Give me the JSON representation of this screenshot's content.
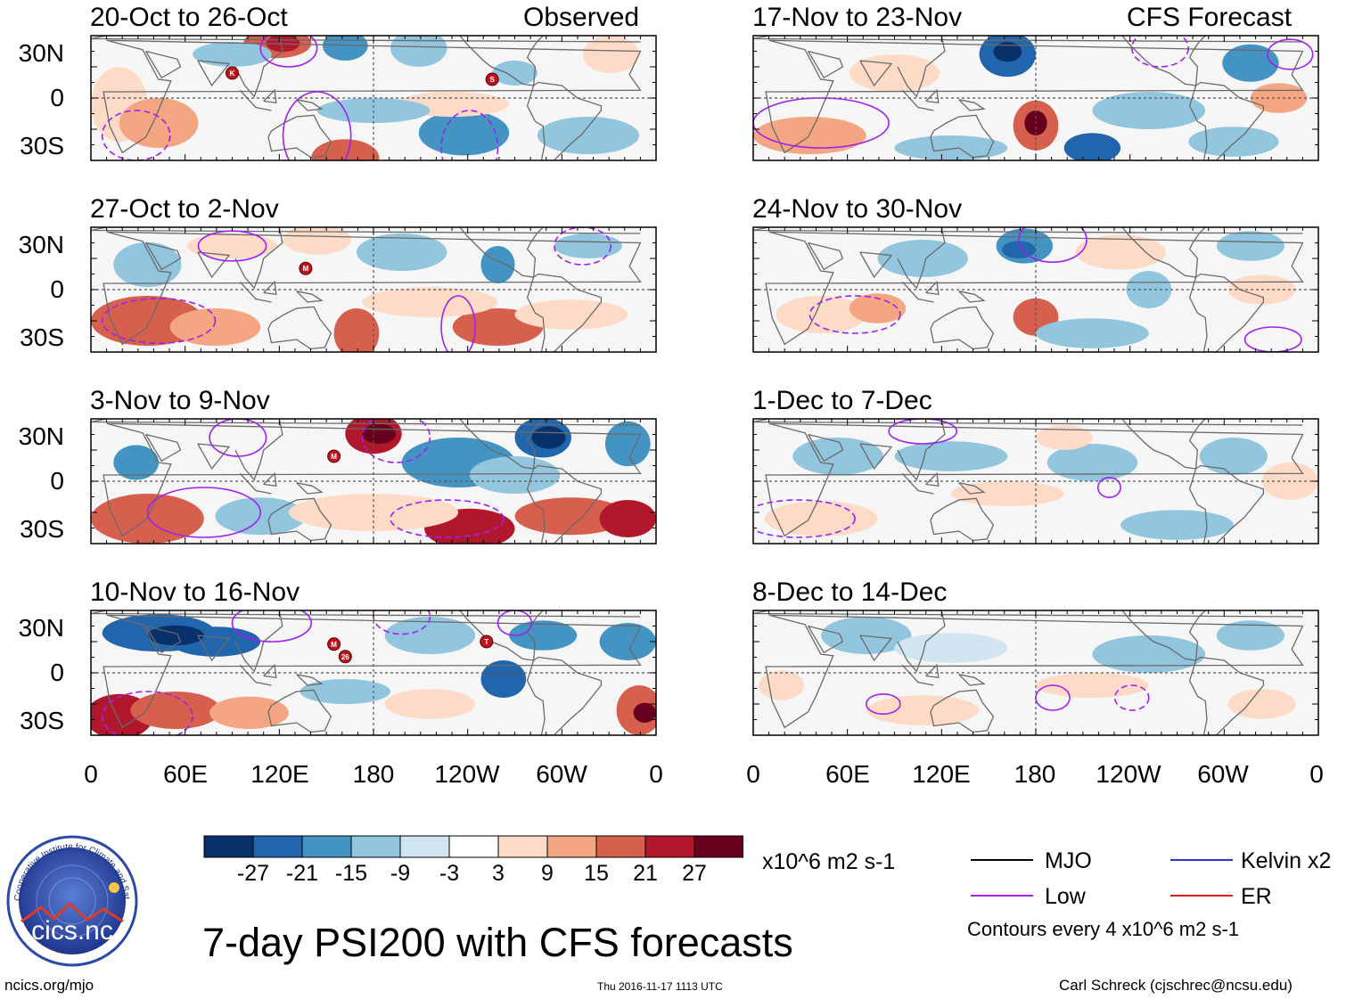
{
  "header": {
    "observed_label": "Observed",
    "forecast_label": "CFS Forecast"
  },
  "panels": {
    "left": [
      {
        "title": "20-Oct to 26-Oct"
      },
      {
        "title": "27-Oct to 2-Nov"
      },
      {
        "title": "3-Nov to 9-Nov"
      },
      {
        "title": "10-Nov to 16-Nov"
      }
    ],
    "right": [
      {
        "title": "17-Nov to 23-Nov"
      },
      {
        "title": "24-Nov to 30-Nov"
      },
      {
        "title": "1-Dec to 7-Dec"
      },
      {
        "title": "8-Dec to 14-Dec"
      }
    ]
  },
  "axes": {
    "y_labels": [
      "30N",
      "0",
      "30S"
    ],
    "x_labels": [
      "0",
      "60E",
      "120E",
      "180",
      "120W",
      "60W",
      "0"
    ]
  },
  "storm_markers": [
    {
      "panel": "left-1",
      "letter": "K"
    },
    {
      "panel": "left-1",
      "letter": "S"
    },
    {
      "panel": "left-2",
      "letter": "M"
    },
    {
      "panel": "left-3",
      "letter": "M"
    },
    {
      "panel": "left-4",
      "letter": "M"
    },
    {
      "panel": "left-4",
      "letter": "26"
    },
    {
      "panel": "left-4",
      "letter": "T"
    }
  ],
  "colorbar": {
    "colors": [
      "#08306b",
      "#2166ac",
      "#4393c3",
      "#92c5de",
      "#d1e5f0",
      "#ffffff",
      "#fddbc7",
      "#f4a582",
      "#d6604d",
      "#b2182b",
      "#67001f"
    ],
    "labels": [
      "-27",
      "-21",
      "-15",
      "-9",
      "-3",
      "3",
      "9",
      "15",
      "21",
      "27"
    ],
    "units": "x10^6 m2 s-1"
  },
  "legend": {
    "items": [
      {
        "label": "MJO",
        "color": "#000000"
      },
      {
        "label": "Kelvin x2",
        "color": "#3333cc"
      },
      {
        "label": "Low",
        "color": "#a020f0"
      },
      {
        "label": "ER",
        "color": "#e31a1c"
      }
    ],
    "contour_note": "Contours every 4 x10^6 m2 s-1"
  },
  "title": "7-day PSI200 with CFS forecasts",
  "logo": {
    "text": "cics.nc",
    "ring_text": "Cooperative Institute for Climate and Satellites"
  },
  "footer": {
    "url": "ncics.org/mjo",
    "timestamp": "Thu 2016-11-17 1113 UTC",
    "author": "Carl Schreck (cjschrec@ncsu.edu)"
  }
}
